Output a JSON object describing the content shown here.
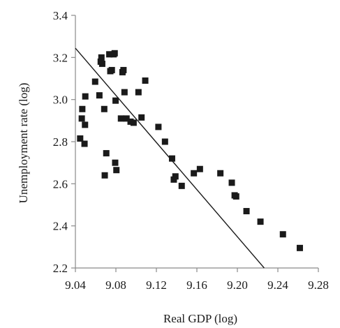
{
  "chart_data": {
    "type": "scatter",
    "xlabel": "Real GDP (log)",
    "ylabel": "Unemployment rate (log)",
    "xlim": [
      9.04,
      9.28
    ],
    "ylim": [
      2.2,
      3.4
    ],
    "x_ticks": [
      "9.04",
      "9.08",
      "9.12",
      "9.16",
      "9.20",
      "9.24",
      "9.28"
    ],
    "y_ticks": [
      "2.2",
      "2.4",
      "2.6",
      "2.8",
      "3.0",
      "3.2",
      "3.4"
    ],
    "grid": false,
    "legend": "none",
    "colors": {
      "marker": "#1a1a1a",
      "line": "#1a1a1a",
      "axis": "#8a8a8a"
    },
    "series": [
      {
        "points": [
          [
            9.0447,
            2.815
          ],
          [
            9.0463,
            2.91
          ],
          [
            9.0468,
            2.955
          ],
          [
            9.049,
            2.79
          ],
          [
            9.0495,
            2.88
          ],
          [
            9.0498,
            3.015
          ],
          [
            9.0595,
            3.085
          ],
          [
            9.0637,
            3.02
          ],
          [
            9.065,
            3.18
          ],
          [
            9.0657,
            3.2
          ],
          [
            9.0665,
            3.17
          ],
          [
            9.0685,
            2.955
          ],
          [
            9.069,
            2.64
          ],
          [
            9.0705,
            2.745
          ],
          [
            9.0735,
            3.215
          ],
          [
            9.0745,
            3.135
          ],
          [
            9.076,
            3.14
          ],
          [
            9.0778,
            3.215
          ],
          [
            9.0788,
            3.22
          ],
          [
            9.0793,
            2.7
          ],
          [
            9.0797,
            2.995
          ],
          [
            9.0805,
            2.665
          ],
          [
            9.085,
            2.91
          ],
          [
            9.0865,
            3.13
          ],
          [
            9.0875,
            3.14
          ],
          [
            9.0885,
            3.035
          ],
          [
            9.0905,
            2.91
          ],
          [
            9.0945,
            2.895
          ],
          [
            9.0975,
            2.89
          ],
          [
            9.1023,
            3.035
          ],
          [
            9.1053,
            2.915
          ],
          [
            9.109,
            3.09
          ],
          [
            9.122,
            2.87
          ],
          [
            9.1285,
            2.8
          ],
          [
            9.1355,
            2.72
          ],
          [
            9.1372,
            2.62
          ],
          [
            9.1388,
            2.635
          ],
          [
            9.145,
            2.59
          ],
          [
            9.157,
            2.65
          ],
          [
            9.163,
            2.67
          ],
          [
            9.1832,
            2.65
          ],
          [
            9.1945,
            2.605
          ],
          [
            9.1973,
            2.545
          ],
          [
            9.1988,
            2.54
          ],
          [
            9.209,
            2.47
          ],
          [
            9.2228,
            2.42
          ],
          [
            9.245,
            2.36
          ],
          [
            9.2617,
            2.295
          ]
        ]
      }
    ],
    "trendline": {
      "x": [
        9.04,
        9.2265
      ],
      "y": [
        3.244,
        2.2
      ]
    }
  }
}
